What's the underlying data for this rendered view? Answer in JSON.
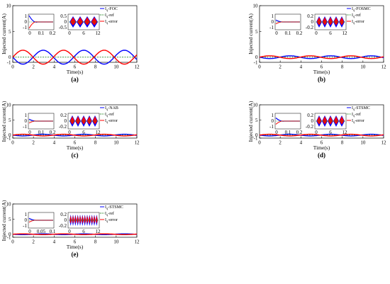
{
  "figure": {
    "colors": {
      "Iq": "#0000ff",
      "ref": "#2e8b2e",
      "error": "#ff0000",
      "axis": "#000000"
    }
  },
  "chart_data": [
    {
      "type": "line",
      "panel": "(a)",
      "xlabel": "Time(s)",
      "ylabel": "Injected current(A)",
      "xlim": [
        0,
        12
      ],
      "ylim": [
        -1,
        10
      ],
      "xticks": [
        "0",
        "2",
        "4",
        "6",
        "8",
        "10",
        "12"
      ],
      "yticks": [
        "-1",
        "0",
        "5",
        "10"
      ],
      "legend": {
        "placement": "top-right",
        "entries": [
          "I_q-FOC",
          "I_q-ref",
          "I_q-error"
        ]
      },
      "series": [
        {
          "name": "I_q-FOC",
          "style": "oscillation",
          "amplitude": 0.5,
          "x_range": [
            0,
            12
          ]
        },
        {
          "name": "I_q-ref",
          "style": "constant",
          "value": 0,
          "x_range": [
            0,
            12
          ]
        },
        {
          "name": "I_q-error",
          "style": "oscillation",
          "amplitude": 0.5,
          "x_range": [
            0,
            12
          ]
        }
      ],
      "insets": [
        {
          "xlim": [
            0,
            0.2
          ],
          "xticks": [
            "0",
            "0.1",
            "0.2"
          ],
          "yticks": [
            "1",
            "0",
            "-1"
          ],
          "style": "transient",
          "peak": 1
        },
        {
          "xlim": [
            0,
            12
          ],
          "xticks": [
            "0",
            "6",
            "12"
          ],
          "yticks": [
            "0.5",
            "0",
            "-0.5"
          ],
          "style": "oscillation",
          "amplitude": 0.5,
          "bands": 4
        }
      ]
    },
    {
      "type": "line",
      "panel": "(b)",
      "xlabel": "Time(s)",
      "ylabel": "Injected current(A)",
      "xlim": [
        0,
        12
      ],
      "ylim": [
        -1,
        10
      ],
      "xticks": [
        "0",
        "2",
        "4",
        "6",
        "8",
        "10",
        "12"
      ],
      "yticks": [
        "-1",
        "0",
        "5",
        "10"
      ],
      "legend": {
        "placement": "top-right",
        "entries": [
          "I_q-FOSMC",
          "I_q-ref",
          "I_q-error"
        ]
      },
      "series": [
        {
          "name": "I_q-FOSMC",
          "style": "oscillation",
          "amplitude": 0.1,
          "x_range": [
            0,
            12
          ]
        },
        {
          "name": "I_q-ref",
          "style": "constant",
          "value": 0,
          "x_range": [
            0,
            12
          ]
        },
        {
          "name": "I_q-error",
          "style": "oscillation",
          "amplitude": 0.1,
          "x_range": [
            0,
            12
          ]
        }
      ],
      "insets": [
        {
          "xlim": [
            0,
            0.2
          ],
          "xticks": [
            "0",
            "0.1",
            "0.2"
          ],
          "yticks": [
            "1",
            "0",
            "-1"
          ],
          "style": "transient",
          "peak": 0.3
        },
        {
          "xlim": [
            0,
            12
          ],
          "xticks": [
            "0",
            "6",
            "12"
          ],
          "yticks": [
            "0.2",
            "0",
            "-0.2"
          ],
          "style": "oscillation",
          "amplitude": 0.15,
          "bands": 5
        }
      ]
    },
    {
      "type": "line",
      "panel": "(c)",
      "xlabel": "Time(s)",
      "ylabel": "Injected current(A)",
      "xlim": [
        0,
        12
      ],
      "ylim": [
        -1,
        10
      ],
      "xticks": [
        "0",
        "2",
        "4",
        "6",
        "8",
        "10",
        "12"
      ],
      "yticks": [
        "-1",
        "0",
        "5",
        "10"
      ],
      "legend": {
        "placement": "top-right",
        "entries": [
          "I_q-NAB",
          "I_q-ref",
          "I_q-error"
        ]
      },
      "series": [
        {
          "name": "I_q-NAB",
          "style": "oscillation",
          "amplitude": 0.1,
          "x_range": [
            0,
            12
          ]
        },
        {
          "name": "I_q-ref",
          "style": "constant",
          "value": 0,
          "x_range": [
            0,
            12
          ]
        },
        {
          "name": "I_q-error",
          "style": "oscillation",
          "amplitude": 0.1,
          "x_range": [
            0,
            12
          ]
        }
      ],
      "insets": [
        {
          "xlim": [
            0,
            0.2
          ],
          "xticks": [
            "0",
            "0.1",
            "0.2"
          ],
          "yticks": [
            "1",
            "0",
            "-1"
          ],
          "style": "transient",
          "peak": 0.3
        },
        {
          "xlim": [
            0,
            12
          ],
          "xticks": [
            "0",
            "6",
            "12"
          ],
          "yticks": [
            "0.2",
            "0",
            "-0.2"
          ],
          "style": "oscillation",
          "amplitude": 0.15,
          "bands": 5
        }
      ]
    },
    {
      "type": "line",
      "panel": "(d)",
      "xlabel": "Time(s)",
      "ylabel": "Injected current(A)",
      "xlim": [
        0,
        12
      ],
      "ylim": [
        -1,
        10
      ],
      "xticks": [
        "0",
        "2",
        "4",
        "6",
        "8",
        "10",
        "12"
      ],
      "yticks": [
        "-1",
        "0",
        "5",
        "10"
      ],
      "legend": {
        "placement": "top-right",
        "entries": [
          "I_q-STSMC",
          "I_q-ref",
          "I_q-error"
        ]
      },
      "series": [
        {
          "name": "I_q-STSMC",
          "style": "oscillation",
          "amplitude": 0.1,
          "x_range": [
            0,
            12
          ]
        },
        {
          "name": "I_q-ref",
          "style": "constant",
          "value": 0,
          "x_range": [
            0,
            12
          ]
        },
        {
          "name": "I_q-error",
          "style": "oscillation",
          "amplitude": 0.1,
          "x_range": [
            0,
            12
          ]
        }
      ],
      "insets": [
        {
          "xlim": [
            0,
            0.2
          ],
          "xticks": [
            "0",
            "0.1",
            "0.2"
          ],
          "yticks": [
            "1",
            "0",
            "-1"
          ],
          "style": "transient",
          "peak": 0.5
        },
        {
          "xlim": [
            0,
            12
          ],
          "xticks": [
            "0",
            "6",
            "12"
          ],
          "yticks": [
            "0.2",
            "0",
            "-0.2"
          ],
          "style": "oscillation",
          "amplitude": 0.15,
          "bands": 5
        }
      ]
    },
    {
      "type": "line",
      "panel": "(e)",
      "xlabel": "Time(s)",
      "ylabel": "Injected current(A)",
      "xlim": [
        0,
        12
      ],
      "ylim": [
        -1,
        10
      ],
      "xticks": [
        "0",
        "2",
        "4",
        "6",
        "8",
        "10",
        "12"
      ],
      "yticks": [
        "-1",
        "0",
        "5",
        "10"
      ],
      "legend": {
        "placement": "top-right",
        "entries": [
          "I_q-STSMC",
          "I_q-ref",
          "I_q-error"
        ]
      },
      "series": [
        {
          "name": "I_q-STSMC",
          "style": "oscillation",
          "amplitude": 0.05,
          "x_range": [
            0,
            12
          ]
        },
        {
          "name": "I_q-ref",
          "style": "constant",
          "value": 0,
          "x_range": [
            0,
            12
          ]
        },
        {
          "name": "I_q-error",
          "style": "oscillation",
          "amplitude": 0.05,
          "x_range": [
            0,
            12
          ]
        }
      ],
      "insets": [
        {
          "xlim": [
            0,
            0.1
          ],
          "xticks": [
            "0",
            "0.05",
            "0.1"
          ],
          "yticks": [
            "1",
            "0",
            "-1"
          ],
          "style": "transient",
          "peak": 0.3
        },
        {
          "xlim": [
            0,
            12
          ],
          "xticks": [
            "0",
            "6",
            "12"
          ],
          "yticks": [
            "0.2",
            "0",
            "-0.2"
          ],
          "style": "dense",
          "amplitude": 0.15,
          "bands": 12
        }
      ]
    }
  ]
}
